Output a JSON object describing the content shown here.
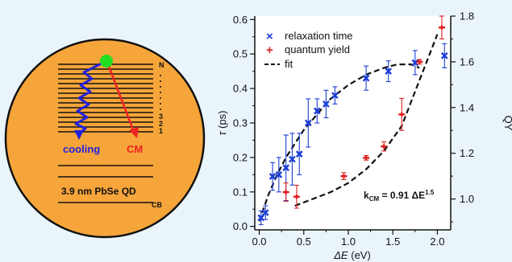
{
  "diagram": {
    "level_top_label": "N",
    "level_labels": [
      "3",
      "2",
      "1"
    ],
    "cooling_label": "cooling",
    "cm_label": "CM",
    "qd_label": "3.9 nm PbSe QD",
    "band_label": "CB",
    "colors": {
      "dot_fill": "#f5a53a",
      "electron": "#22dd22",
      "cooling": "#2222dd",
      "cm": "#ee2222"
    }
  },
  "chart_data": {
    "type": "scatter",
    "xlabel_symbol": "ΔE",
    "xlabel_unit": "(eV)",
    "ylabel_symbol": "τ",
    "ylabel_unit": "(ps)",
    "y2label": "QY",
    "xlim": [
      -0.05,
      2.15
    ],
    "ylim": [
      -0.01,
      0.61
    ],
    "y2lim": [
      0.865,
      1.8
    ],
    "x_ticks": [
      0.0,
      0.5,
      1.0,
      1.5,
      2.0
    ],
    "x_tick_labels": [
      "0.0",
      "0.5",
      "1.0",
      "1.5",
      "2.0"
    ],
    "y_ticks": [
      0.0,
      0.1,
      0.2,
      0.3,
      0.4,
      0.5,
      0.6
    ],
    "y_tick_labels": [
      "0.0",
      "0.1",
      "0.2",
      "0.3",
      "0.4",
      "0.5",
      "0.6"
    ],
    "y2_ticks": [
      1.0,
      1.2,
      1.4,
      1.6,
      1.8
    ],
    "y2_tick_labels": [
      "1.0",
      "1.2",
      "1.4",
      "1.6",
      "1.8"
    ],
    "legend_position": "top-left",
    "annotation": {
      "prefix": "k",
      "subscript": "CM",
      "suffix": " = 0.91 ΔE",
      "superscript": "1.5"
    },
    "series": [
      {
        "name": "relaxation time",
        "axis": "left",
        "color": "#1c3fd6",
        "marker": "x",
        "points": [
          {
            "x": 0.02,
            "y": 0.025,
            "err": 0.02
          },
          {
            "x": 0.07,
            "y": 0.04,
            "err": 0.02
          },
          {
            "x": 0.15,
            "y": 0.145,
            "err": 0.04
          },
          {
            "x": 0.22,
            "y": 0.15,
            "err": 0.05
          },
          {
            "x": 0.3,
            "y": 0.17,
            "err": 0.095
          },
          {
            "x": 0.37,
            "y": 0.195,
            "err": 0.075
          },
          {
            "x": 0.45,
            "y": 0.21,
            "err": 0.06
          },
          {
            "x": 0.55,
            "y": 0.3,
            "err": 0.07
          },
          {
            "x": 0.65,
            "y": 0.335,
            "err": 0.035
          },
          {
            "x": 0.75,
            "y": 0.355,
            "err": 0.04
          },
          {
            "x": 0.85,
            "y": 0.38,
            "err": 0.025
          },
          {
            "x": 1.2,
            "y": 0.43,
            "err": 0.035
          },
          {
            "x": 1.45,
            "y": 0.45,
            "err": 0.03
          },
          {
            "x": 1.75,
            "y": 0.475,
            "err": 0.035
          },
          {
            "x": 2.08,
            "y": 0.495,
            "err": 0.035
          }
        ]
      },
      {
        "name": "quantum yield",
        "axis": "right",
        "color": "#e02020",
        "marker": "+",
        "points": [
          {
            "x": 0.3,
            "y": 1.03,
            "err": 0.04
          },
          {
            "x": 0.42,
            "y": 1.01,
            "err": 0.05
          },
          {
            "x": 0.95,
            "y": 1.1,
            "err": 0.015
          },
          {
            "x": 1.2,
            "y": 1.18,
            "err": 0.01
          },
          {
            "x": 1.4,
            "y": 1.23,
            "err": 0.02
          },
          {
            "x": 1.6,
            "y": 1.37,
            "err": 0.07
          },
          {
            "x": 1.8,
            "y": 1.6,
            "err": 0.01
          },
          {
            "x": 2.05,
            "y": 1.75,
            "err": 0.05
          }
        ]
      },
      {
        "name": "fit",
        "type": "line",
        "style": "dashed",
        "color": "#111111",
        "segments": [
          {
            "axis": "left",
            "points": [
              [
                0.0,
                0.015
              ],
              [
                0.1,
                0.09
              ],
              [
                0.2,
                0.15
              ],
              [
                0.3,
                0.2
              ],
              [
                0.4,
                0.24
              ],
              [
                0.5,
                0.28
              ],
              [
                0.6,
                0.31
              ],
              [
                0.7,
                0.34
              ],
              [
                0.8,
                0.37
              ],
              [
                0.9,
                0.39
              ],
              [
                1.0,
                0.41
              ],
              [
                1.2,
                0.44
              ],
              [
                1.4,
                0.46
              ],
              [
                1.55,
                0.47
              ],
              [
                1.7,
                0.47
              ],
              [
                1.8,
                0.46
              ]
            ]
          },
          {
            "axis": "right",
            "points": [
              [
                0.4,
                0.97
              ],
              [
                0.6,
                1.0
              ],
              [
                0.8,
                1.03
              ],
              [
                1.0,
                1.07
              ],
              [
                1.2,
                1.13
              ],
              [
                1.4,
                1.21
              ],
              [
                1.6,
                1.32
              ],
              [
                1.8,
                1.52
              ],
              [
                2.0,
                1.72
              ]
            ]
          }
        ]
      }
    ]
  }
}
